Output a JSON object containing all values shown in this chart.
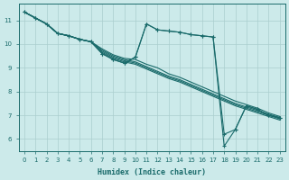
{
  "background_color": "#cceaea",
  "grid_color": "#aacece",
  "line_color": "#1a6b6b",
  "xlabel": "Humidex (Indice chaleur)",
  "xlim": [
    -0.5,
    23.5
  ],
  "ylim": [
    5.5,
    11.7
  ],
  "yticks": [
    6,
    7,
    8,
    9,
    10,
    11
  ],
  "xticks": [
    0,
    1,
    2,
    3,
    4,
    5,
    6,
    7,
    8,
    9,
    10,
    11,
    12,
    13,
    14,
    15,
    16,
    17,
    18,
    19,
    20,
    21,
    22,
    23
  ],
  "lines": [
    {
      "x": [
        0,
        1,
        2,
        3,
        4,
        5,
        6,
        7,
        8,
        9,
        10,
        11,
        12,
        13,
        14,
        15,
        16,
        17,
        18,
        19,
        20,
        21,
        22,
        23
      ],
      "y": [
        11.35,
        11.1,
        10.85,
        10.45,
        10.35,
        10.2,
        10.1,
        9.8,
        9.55,
        9.4,
        9.35,
        9.15,
        9.0,
        8.75,
        8.6,
        8.4,
        8.2,
        8.0,
        7.8,
        7.6,
        7.45,
        7.3,
        7.1,
        6.95
      ],
      "marker": false
    },
    {
      "x": [
        0,
        1,
        2,
        3,
        4,
        5,
        6,
        7,
        8,
        9,
        10,
        11,
        12,
        13,
        14,
        15,
        16,
        17,
        18,
        19,
        20,
        21,
        22,
        23
      ],
      "y": [
        11.35,
        11.1,
        10.85,
        10.45,
        10.35,
        10.2,
        10.1,
        9.75,
        9.5,
        9.35,
        9.25,
        9.05,
        8.85,
        8.65,
        8.5,
        8.3,
        8.1,
        7.9,
        7.7,
        7.5,
        7.35,
        7.2,
        7.05,
        6.9
      ],
      "marker": false
    },
    {
      "x": [
        0,
        1,
        2,
        3,
        4,
        5,
        6,
        7,
        8,
        9,
        10,
        11,
        12,
        13,
        14,
        15,
        16,
        17,
        18,
        19,
        20,
        21,
        22,
        23
      ],
      "y": [
        11.35,
        11.1,
        10.85,
        10.45,
        10.35,
        10.2,
        10.1,
        9.7,
        9.45,
        9.3,
        9.2,
        9.0,
        8.8,
        8.6,
        8.45,
        8.25,
        8.05,
        7.85,
        7.65,
        7.45,
        7.3,
        7.15,
        7.0,
        6.85
      ],
      "marker": false
    },
    {
      "x": [
        0,
        1,
        2,
        3,
        4,
        5,
        6,
        7,
        8,
        9,
        10,
        11,
        12,
        13,
        14,
        15,
        16,
        17,
        18,
        19,
        20,
        21,
        22,
        23
      ],
      "y": [
        11.35,
        11.1,
        10.85,
        10.45,
        10.35,
        10.2,
        10.1,
        9.65,
        9.4,
        9.25,
        9.15,
        8.95,
        8.75,
        8.55,
        8.4,
        8.2,
        8.0,
        7.8,
        7.6,
        7.4,
        7.25,
        7.1,
        6.95,
        6.8
      ],
      "marker": false
    },
    {
      "x": [
        0,
        1,
        2,
        3,
        4,
        5,
        6,
        7,
        8,
        9,
        10,
        11,
        12,
        13,
        14,
        15,
        16,
        17,
        18,
        19,
        20,
        21,
        22,
        23
      ],
      "y": [
        11.35,
        11.1,
        10.85,
        10.45,
        10.35,
        10.2,
        10.1,
        9.6,
        9.35,
        9.2,
        9.45,
        10.85,
        10.6,
        10.55,
        10.5,
        10.4,
        10.35,
        10.3,
        6.2,
        6.4,
        7.4,
        7.25,
        7.0,
        6.9
      ],
      "marker": true
    },
    {
      "x": [
        0,
        1,
        2,
        3,
        4,
        5,
        6,
        7,
        8,
        9,
        10,
        11,
        12,
        13,
        14,
        15,
        16,
        17,
        18,
        19,
        20,
        21,
        22,
        23
      ],
      "y": [
        11.35,
        11.1,
        10.85,
        10.45,
        10.35,
        10.2,
        10.1,
        9.6,
        9.35,
        9.2,
        9.45,
        10.85,
        10.6,
        10.55,
        10.5,
        10.4,
        10.35,
        10.3,
        5.7,
        6.4,
        7.4,
        7.25,
        7.0,
        6.9
      ],
      "marker": true
    }
  ]
}
